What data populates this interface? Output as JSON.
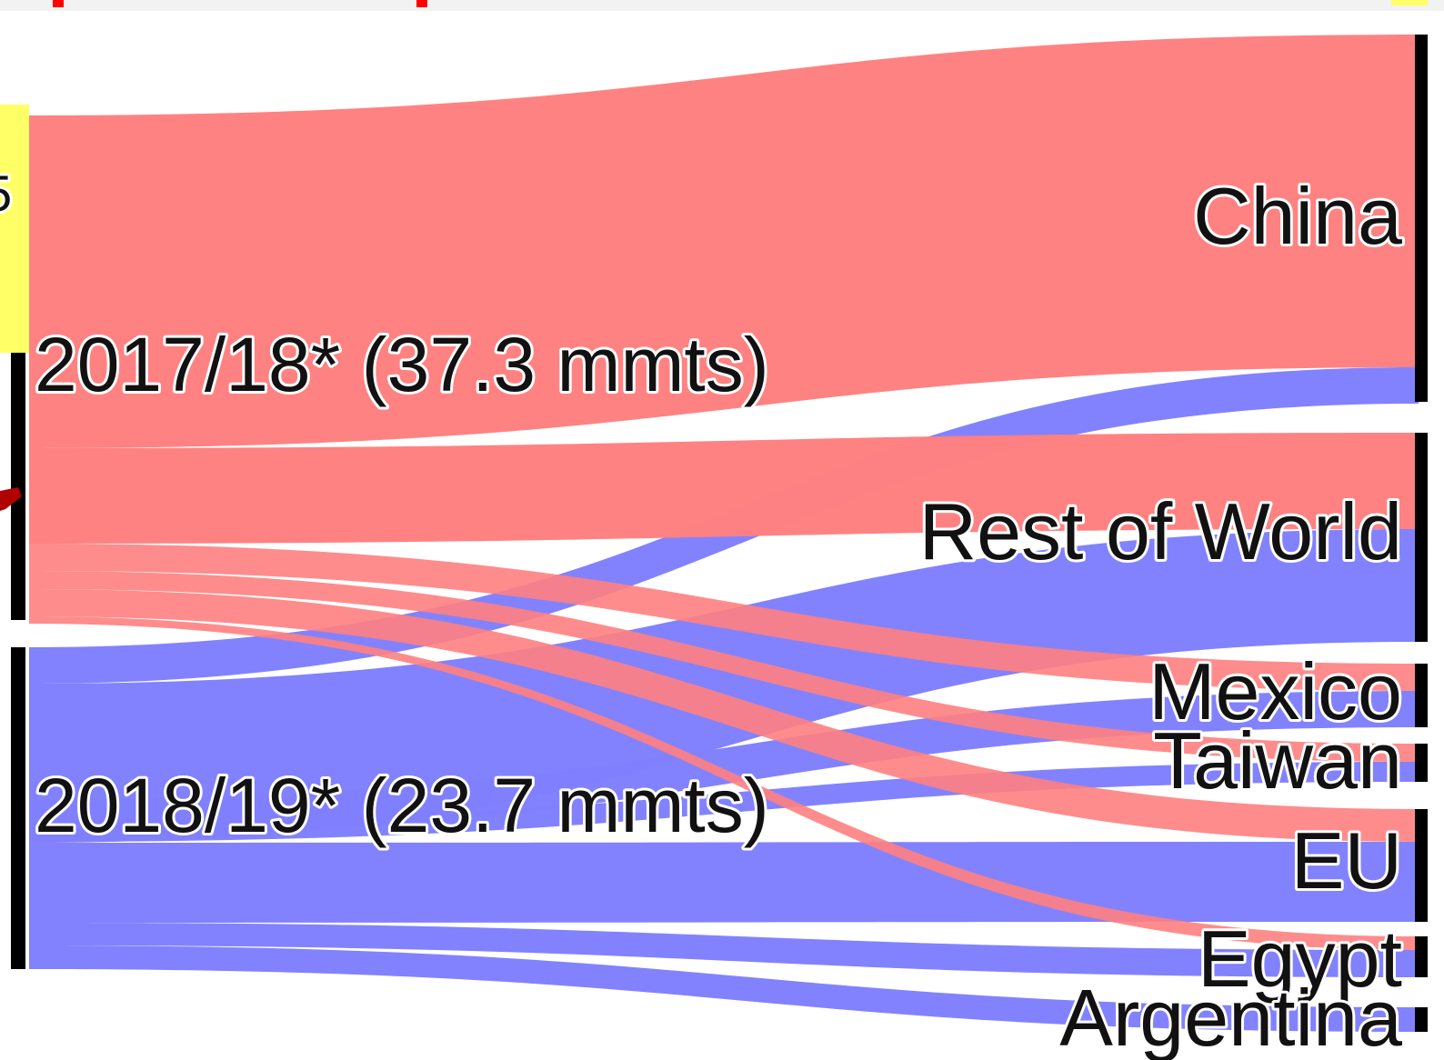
{
  "colors": {
    "flow_2017": "#ff7f7f",
    "flow_2018": "#7f7fff",
    "node": "#000000",
    "highlight_yellow": "#ffff66",
    "accent_red": "#ff0000",
    "arrow_darkred": "#b00000"
  },
  "sources": [
    {
      "id": "y2017",
      "label": "2017/18* (37.3 mmts)"
    },
    {
      "id": "y2018",
      "label": "2018/19* (23.7 mmts)"
    }
  ],
  "targets": [
    {
      "id": "china",
      "label": "China"
    },
    {
      "id": "row",
      "label": "Rest of World"
    },
    {
      "id": "mexico",
      "label": "Mexico"
    },
    {
      "id": "taiwan",
      "label": "Taiwan"
    },
    {
      "id": "eu",
      "label": "EU"
    },
    {
      "id": "egypt",
      "label": "Egypt"
    },
    {
      "id": "argentina",
      "label": "Argentina"
    }
  ],
  "partial_label": "5"
}
